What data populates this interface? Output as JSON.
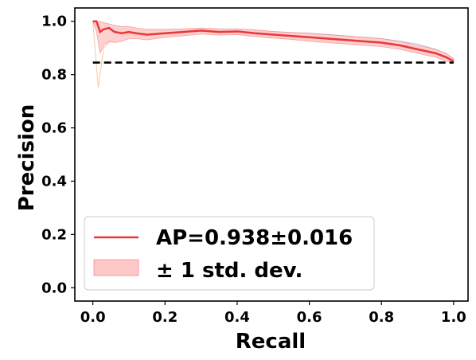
{
  "chart_data": {
    "type": "line",
    "xlabel": "Recall",
    "ylabel": "Precision",
    "xlim": [
      -0.05,
      1.04
    ],
    "ylim": [
      -0.05,
      1.05
    ],
    "x_ticks": [
      0.0,
      0.2,
      0.4,
      0.6,
      0.8,
      1.0
    ],
    "x_tick_labels": [
      "0.0",
      "0.2",
      "0.4",
      "0.6",
      "0.8",
      "1.0"
    ],
    "y_ticks": [
      0.0,
      0.2,
      0.4,
      0.6,
      0.8,
      1.0
    ],
    "y_tick_labels": [
      "0.0",
      "0.2",
      "0.4",
      "0.6",
      "0.8",
      "1.0"
    ],
    "grid": false,
    "legend_position": "bottom-left",
    "legend": {
      "mean_label": "AP=0.938±0.016",
      "band_label": "± 1 std. dev."
    },
    "baseline": {
      "y": 0.845,
      "x_range": [
        0.0,
        1.0
      ],
      "style": "dashed",
      "color": "#000000"
    },
    "mean_color": "#e8383a",
    "band_color": "#ffc8c8",
    "series": [
      {
        "kind": "mean",
        "x": [
          0.0,
          0.01,
          0.02,
          0.03,
          0.045,
          0.06,
          0.08,
          0.1,
          0.12,
          0.15,
          0.2,
          0.25,
          0.3,
          0.35,
          0.4,
          0.45,
          0.5,
          0.55,
          0.6,
          0.65,
          0.7,
          0.75,
          0.8,
          0.85,
          0.9,
          0.95,
          0.98,
          1.0
        ],
        "y": [
          1.0,
          1.0,
          0.96,
          0.97,
          0.975,
          0.96,
          0.955,
          0.96,
          0.955,
          0.95,
          0.955,
          0.96,
          0.965,
          0.96,
          0.962,
          0.955,
          0.95,
          0.945,
          0.94,
          0.935,
          0.93,
          0.925,
          0.92,
          0.91,
          0.895,
          0.88,
          0.865,
          0.85
        ]
      },
      {
        "kind": "band",
        "x": [
          0.0,
          0.01,
          0.02,
          0.03,
          0.045,
          0.06,
          0.08,
          0.1,
          0.12,
          0.15,
          0.2,
          0.25,
          0.3,
          0.35,
          0.4,
          0.45,
          0.5,
          0.55,
          0.6,
          0.65,
          0.7,
          0.75,
          0.8,
          0.85,
          0.9,
          0.95,
          0.98,
          1.0
        ],
        "upper": [
          1.0,
          1.0,
          1.0,
          0.995,
          0.99,
          0.985,
          0.98,
          0.98,
          0.975,
          0.97,
          0.97,
          0.972,
          0.975,
          0.972,
          0.972,
          0.968,
          0.962,
          0.958,
          0.955,
          0.95,
          0.945,
          0.94,
          0.935,
          0.925,
          0.91,
          0.895,
          0.88,
          0.86
        ],
        "lower": [
          1.0,
          0.96,
          0.88,
          0.91,
          0.925,
          0.92,
          0.925,
          0.935,
          0.935,
          0.93,
          0.94,
          0.945,
          0.952,
          0.948,
          0.95,
          0.942,
          0.937,
          0.932,
          0.925,
          0.92,
          0.915,
          0.91,
          0.905,
          0.895,
          0.88,
          0.865,
          0.85,
          0.845
        ]
      },
      {
        "kind": "fold",
        "color": "#c7d4e8",
        "x": [
          0.0,
          0.02,
          0.05,
          0.1,
          0.15,
          0.2,
          0.3,
          0.4,
          0.5,
          0.6,
          0.7,
          0.8,
          0.9,
          0.95,
          1.0
        ],
        "y": [
          1.0,
          0.99,
          0.975,
          0.97,
          0.965,
          0.965,
          0.97,
          0.968,
          0.96,
          0.955,
          0.945,
          0.935,
          0.915,
          0.895,
          0.86
        ]
      },
      {
        "kind": "fold",
        "color": "#f6d3b4",
        "x": [
          0.0,
          0.015,
          0.03,
          0.06,
          0.1,
          0.15,
          0.2,
          0.3,
          0.4,
          0.5,
          0.6,
          0.7,
          0.8,
          0.9,
          0.95,
          1.0
        ],
        "y": [
          1.0,
          0.75,
          0.9,
          0.94,
          0.95,
          0.945,
          0.95,
          0.96,
          0.955,
          0.94,
          0.93,
          0.925,
          0.915,
          0.89,
          0.87,
          0.85
        ]
      },
      {
        "kind": "fold",
        "color": "#d9e6d3",
        "x": [
          0.0,
          0.02,
          0.05,
          0.1,
          0.15,
          0.2,
          0.3,
          0.4,
          0.5,
          0.6,
          0.7,
          0.8,
          0.9,
          0.95,
          1.0
        ],
        "y": [
          1.0,
          0.98,
          0.96,
          0.955,
          0.95,
          0.955,
          0.962,
          0.96,
          0.948,
          0.938,
          0.928,
          0.918,
          0.9,
          0.88,
          0.845
        ]
      },
      {
        "kind": "fold",
        "color": "#e3d6ea",
        "x": [
          0.0,
          0.02,
          0.05,
          0.1,
          0.15,
          0.2,
          0.3,
          0.4,
          0.5,
          0.6,
          0.7,
          0.8,
          0.9,
          0.95,
          1.0
        ],
        "y": [
          1.0,
          0.97,
          0.965,
          0.96,
          0.952,
          0.958,
          0.965,
          0.962,
          0.952,
          0.942,
          0.933,
          0.922,
          0.905,
          0.885,
          0.85
        ]
      }
    ]
  }
}
